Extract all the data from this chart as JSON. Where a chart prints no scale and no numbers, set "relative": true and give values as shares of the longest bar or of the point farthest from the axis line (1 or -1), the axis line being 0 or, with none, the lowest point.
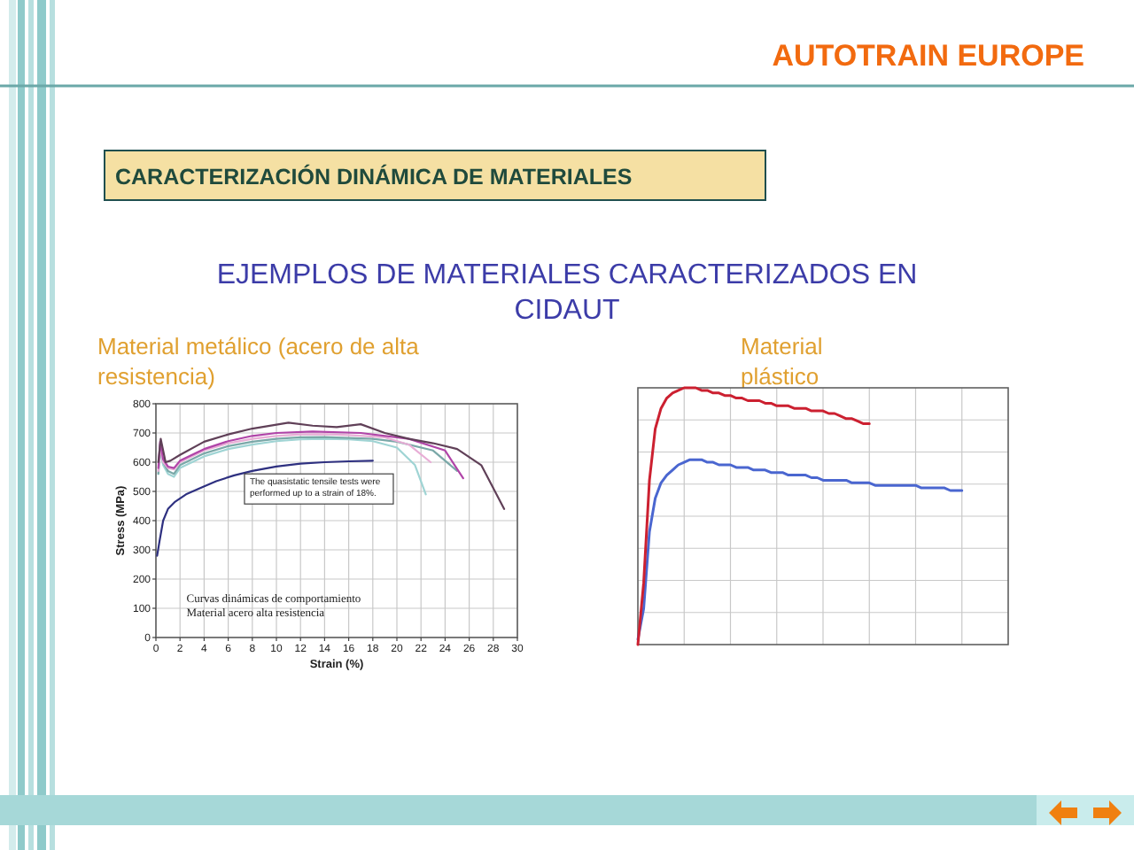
{
  "chart_data": [
    {
      "type": "other",
      "title": "CARACTERIZACIÓN DINÁMICA DE MATERIALES",
      "subtitle": "EJEMPLOS DE MATERIALES CARACTERIZADOS EN CIDAUT",
      "annotations": [
        "AUTOTRAIN EUROPE"
      ]
    },
    {
      "type": "line",
      "title": "Material metálico (acero de alta resistencia)",
      "xlabel": "Strain (%)",
      "ylabel": "Stress (MPa)",
      "xlim": [
        0,
        30
      ],
      "ylim": [
        0,
        800
      ],
      "xticks": [
        0,
        2,
        4,
        6,
        8,
        10,
        12,
        14,
        16,
        18,
        20,
        22,
        24,
        26,
        28,
        30
      ],
      "yticks": [
        0,
        100,
        200,
        300,
        400,
        500,
        600,
        700,
        800
      ],
      "grid": true,
      "annotations": [
        "The quasistatic tensile tests were performed up to a strain of 18%.",
        "Curvas dinámicas de comportamiento Material acero alta resistencia"
      ],
      "series": [
        {
          "color": "#2e3080",
          "x": [
            0.1,
            0.3,
            0.6,
            1,
            1.6,
            2.5,
            3.8,
            5,
            6.5,
            8,
            10,
            12,
            14,
            16,
            18
          ],
          "values": [
            280,
            330,
            400,
            440,
            465,
            490,
            514,
            535,
            555,
            570,
            585,
            595,
            600,
            603,
            605
          ]
        },
        {
          "color": "#9fd4d4",
          "x": [
            0.2,
            0.35,
            0.6,
            1,
            1.5,
            2,
            4,
            6,
            8,
            10,
            12,
            14,
            16,
            18,
            20,
            21.5,
            22.4
          ],
          "values": [
            560,
            640,
            590,
            560,
            550,
            580,
            620,
            645,
            660,
            672,
            678,
            680,
            678,
            672,
            650,
            590,
            490
          ]
        },
        {
          "color": "#7aa8a8",
          "x": [
            0.2,
            0.35,
            0.6,
            1,
            1.5,
            2,
            4,
            6,
            8,
            10,
            12,
            14,
            16,
            18,
            20,
            23,
            25
          ],
          "values": [
            560,
            660,
            600,
            570,
            560,
            590,
            630,
            655,
            670,
            680,
            685,
            686,
            683,
            680,
            670,
            640,
            570
          ]
        },
        {
          "color": "#e8aed6",
          "x": [
            0.2,
            0.35,
            0.6,
            1,
            1.5,
            2,
            4,
            6,
            8,
            10,
            12,
            14,
            16,
            19,
            21,
            22.8
          ],
          "values": [
            570,
            650,
            600,
            580,
            575,
            600,
            640,
            665,
            680,
            690,
            695,
            696,
            693,
            685,
            660,
            600
          ]
        },
        {
          "color": "#b044a8",
          "x": [
            0.2,
            0.35,
            0.6,
            1,
            1.5,
            2,
            4,
            6,
            8,
            10,
            13,
            17,
            21,
            24,
            25.5
          ],
          "values": [
            580,
            670,
            610,
            585,
            580,
            605,
            645,
            672,
            690,
            700,
            705,
            700,
            680,
            640,
            545
          ]
        },
        {
          "color": "#604058",
          "x": [
            0.2,
            0.4,
            0.8,
            1.2,
            2,
            4,
            6,
            8,
            11,
            13,
            15,
            17,
            19,
            21,
            23,
            25,
            27,
            28.9
          ],
          "values": [
            600,
            680,
            600,
            605,
            625,
            670,
            695,
            715,
            735,
            725,
            720,
            730,
            700,
            680,
            665,
            645,
            590,
            440
          ]
        }
      ]
    },
    {
      "type": "line",
      "title": "Material plástico",
      "relative": true,
      "grid": true,
      "categories": [
        null,
        null,
        null,
        null,
        null,
        null,
        null,
        null,
        null,
        null,
        null,
        null,
        null,
        null,
        null,
        null,
        null,
        null,
        null,
        null,
        null,
        null,
        null,
        null,
        null,
        null,
        null,
        null,
        null,
        null,
        null,
        null,
        null,
        null,
        null,
        null,
        null,
        null,
        null,
        null,
        null,
        null,
        null,
        null,
        null,
        null,
        null,
        null,
        null,
        null,
        null,
        null,
        null,
        null,
        null,
        null,
        null,
        null,
        null,
        null,
        null,
        null,
        null,
        null,
        null
      ],
      "series": [
        {
          "color": "#4a66d0",
          "values": [
            0.02,
            0.14,
            0.44,
            0.57,
            0.63,
            0.66,
            0.68,
            0.7,
            0.71,
            0.72,
            0.72,
            0.72,
            0.71,
            0.71,
            0.7,
            0.7,
            0.7,
            0.69,
            0.69,
            0.69,
            0.68,
            0.68,
            0.68,
            0.67,
            0.67,
            0.67,
            0.66,
            0.66,
            0.66,
            0.66,
            0.65,
            0.65,
            0.64,
            0.64,
            0.64,
            0.64,
            0.64,
            0.63,
            0.63,
            0.63,
            0.63,
            0.62,
            0.62,
            0.62,
            0.62,
            0.62,
            0.62,
            0.62,
            0.62,
            0.61,
            0.61,
            0.61,
            0.61,
            0.61,
            0.6,
            0.6,
            0.6,
            null,
            null,
            null,
            null,
            null,
            null,
            null,
            null
          ]
        },
        {
          "color": "#cc2030",
          "values": [
            0,
            0.24,
            0.64,
            0.84,
            0.92,
            0.96,
            0.98,
            0.99,
            1,
            1,
            1,
            0.99,
            0.99,
            0.98,
            0.98,
            0.97,
            0.97,
            0.96,
            0.96,
            0.95,
            0.95,
            0.95,
            0.94,
            0.94,
            0.93,
            0.93,
            0.93,
            0.92,
            0.92,
            0.92,
            0.91,
            0.91,
            0.91,
            0.9,
            0.9,
            0.89,
            0.88,
            0.88,
            0.87,
            0.86,
            0.86,
            null,
            null,
            null,
            null,
            null,
            null,
            null,
            null,
            null,
            null,
            null,
            null,
            null,
            null,
            null,
            null,
            null,
            null,
            null,
            null,
            null,
            null,
            null,
            null
          ]
        }
      ]
    }
  ]
}
